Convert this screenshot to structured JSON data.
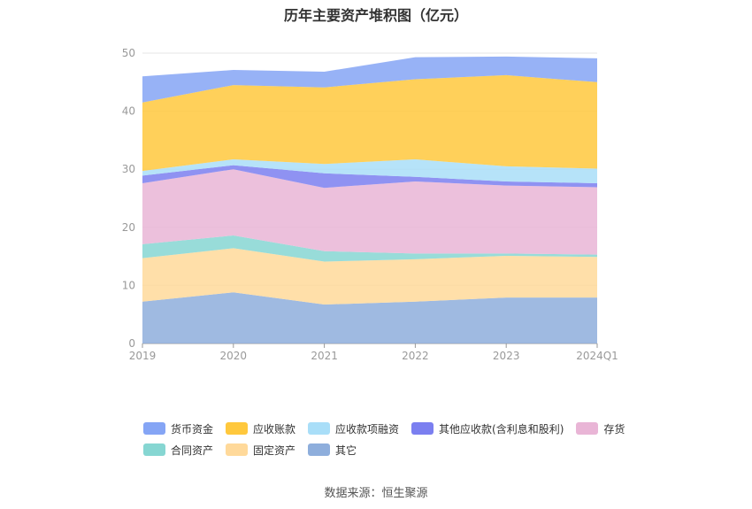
{
  "chart_data": {
    "type": "area",
    "stacked": true,
    "title": "历年主要资产堆积图（亿元）",
    "categories": [
      "2019",
      "2020",
      "2021",
      "2022",
      "2023",
      "2024Q1"
    ],
    "ylim": [
      0,
      50
    ],
    "yticks": [
      0,
      10,
      20,
      30,
      40,
      50
    ],
    "grid": true,
    "legend_position": "bottom",
    "series": [
      {
        "name": "其它",
        "color": "#8eaedc",
        "values": [
          7.2,
          8.8,
          6.7,
          7.2,
          7.9,
          7.9
        ]
      },
      {
        "name": "固定资产",
        "color": "#ffd99a",
        "values": [
          7.5,
          7.6,
          7.4,
          7.3,
          7.2,
          7.0
        ]
      },
      {
        "name": "合同资产",
        "color": "#86d6d2",
        "values": [
          2.4,
          2.2,
          1.8,
          1.0,
          0.4,
          0.4
        ]
      },
      {
        "name": "存货",
        "color": "#e9b5d6",
        "values": [
          10.5,
          11.4,
          10.9,
          12.4,
          11.7,
          11.6
        ]
      },
      {
        "name": "其他应收款(含利息和股利)",
        "color": "#7b7ff0",
        "values": [
          1.3,
          0.7,
          2.5,
          0.8,
          0.7,
          0.7
        ]
      },
      {
        "name": "应收款项融资",
        "color": "#a9def8",
        "values": [
          0.8,
          1.0,
          1.6,
          3.0,
          2.6,
          2.5
        ]
      },
      {
        "name": "应收账款",
        "color": "#ffc83d",
        "values": [
          11.8,
          12.8,
          13.2,
          13.8,
          15.7,
          14.9
        ]
      },
      {
        "name": "货币资金",
        "color": "#85a5f5",
        "values": [
          4.5,
          2.6,
          2.7,
          3.8,
          3.2,
          4.1
        ]
      }
    ],
    "legend_order": [
      "货币资金",
      "应收账款",
      "应收款项融资",
      "其他应收款(含利息和股利)",
      "存货",
      "合同资产",
      "固定资产",
      "其它"
    ]
  },
  "source": "数据来源：恒生聚源"
}
